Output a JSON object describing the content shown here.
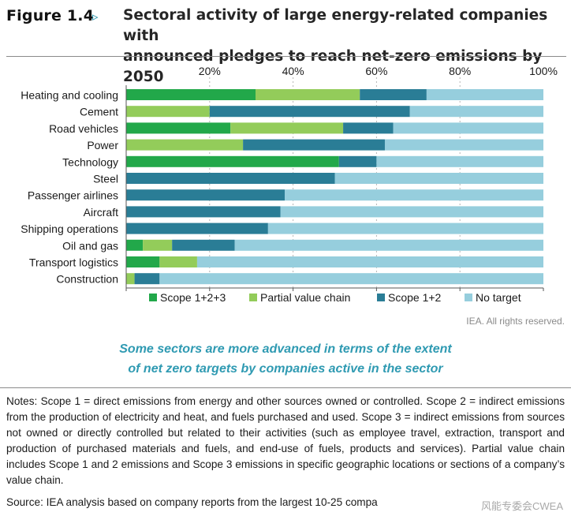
{
  "header": {
    "figure_label": "Figure 1.4",
    "arrow": "▹",
    "title_line1": "Sectoral activity of large energy-related companies with",
    "title_line2": "announced pledges to reach net-zero emissions by 2050"
  },
  "chart_data": {
    "type": "bar",
    "orientation": "horizontal",
    "stacked": true,
    "title": "Sectoral activity of large energy-related companies with announced pledges to reach net-zero emissions by 2050",
    "categories": [
      "Heating and cooling",
      "Cement",
      "Road vehicles",
      "Power",
      "Technology",
      "Steel",
      "Passenger airlines",
      "Aircraft",
      "Shipping operations",
      "Oil and gas",
      "Transport logistics",
      "Construction"
    ],
    "series": [
      {
        "name": "Scope 1+2+3",
        "color": "#22a84a",
        "values": [
          31,
          0,
          25,
          0,
          51,
          0,
          0,
          0,
          0,
          4,
          8,
          0
        ]
      },
      {
        "name": "Partial value chain",
        "color": "#93cc5a",
        "values": [
          25,
          20,
          27,
          28,
          0,
          0,
          0,
          0,
          0,
          7,
          9,
          2
        ]
      },
      {
        "name": "Scope 1+2",
        "color": "#2a7d96",
        "values": [
          16,
          48,
          12,
          34,
          9,
          50,
          38,
          37,
          34,
          15,
          0,
          6
        ]
      },
      {
        "name": "No target",
        "color": "#96cedd",
        "values": [
          28,
          32,
          36,
          38,
          40,
          50,
          62,
          63,
          66,
          74,
          83,
          92
        ]
      }
    ],
    "x_ticks": [
      "20%",
      "40%",
      "60%",
      "80%",
      "100%"
    ],
    "xlim": [
      0,
      100
    ],
    "xlabel": "",
    "ylabel": "",
    "legend_position": "bottom",
    "grid": "vertical dashed"
  },
  "credit": "IEA. All rights reserved.",
  "caption": {
    "line1": "Some sectors are more advanced in terms of the extent",
    "line2": "of net zero targets by companies active in the sector"
  },
  "notes": "Notes: Scope 1 = direct emissions from energy and other sources owned or controlled. Scope 2 = indirect emissions from the production of electricity and heat, and fuels purchased and used. Scope 3 = indirect emissions from sources not owned or directly controlled but related to their activities (such as employee travel, extraction, transport and production of purchased materials and fuels, and end-use of fuels, products and services). Partial value chain includes Scope 1 and 2 emissions and Scope 3 emissions in specific geographic locations or sections of a company’s value chain.",
  "source": "Source: IEA analysis based on company reports from the largest 10-25 compa",
  "watermark": "风能专委会CWEA"
}
